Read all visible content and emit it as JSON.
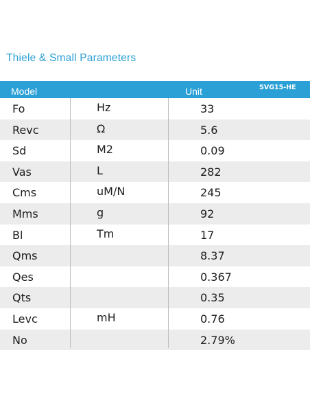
{
  "title": "Thiele & Small Parameters",
  "header": {
    "model": "Model",
    "unit": "Unit",
    "product": "SVG15-HE"
  },
  "rows": [
    {
      "param": "Fo",
      "unit": "Hz",
      "value": "33"
    },
    {
      "param": "Revc",
      "unit": "Ω",
      "value": "5.6"
    },
    {
      "param": "Sd",
      "unit": "M2",
      "value": "0.09"
    },
    {
      "param": "Vas",
      "unit": "L",
      "value": "282"
    },
    {
      "param": "Cms",
      "unit": "uM/N",
      "value": "245"
    },
    {
      "param": "Mms",
      "unit": "g",
      "value": "92"
    },
    {
      "param": "Bl",
      "unit": "Tm",
      "value": "17"
    },
    {
      "param": "Qms",
      "unit": "",
      "value": "8.37"
    },
    {
      "param": "Qes",
      "unit": "",
      "value": "0.367"
    },
    {
      "param": "Qts",
      "unit": "",
      "value": "0.35"
    },
    {
      "param": "Levc",
      "unit": "mH",
      "value": "0.76"
    },
    {
      "param": "No",
      "unit": "",
      "value": "2.79%"
    }
  ],
  "colors": {
    "accent": "#2aa0d6",
    "alt_row": "#ececec",
    "text": "#1d1d1d"
  }
}
